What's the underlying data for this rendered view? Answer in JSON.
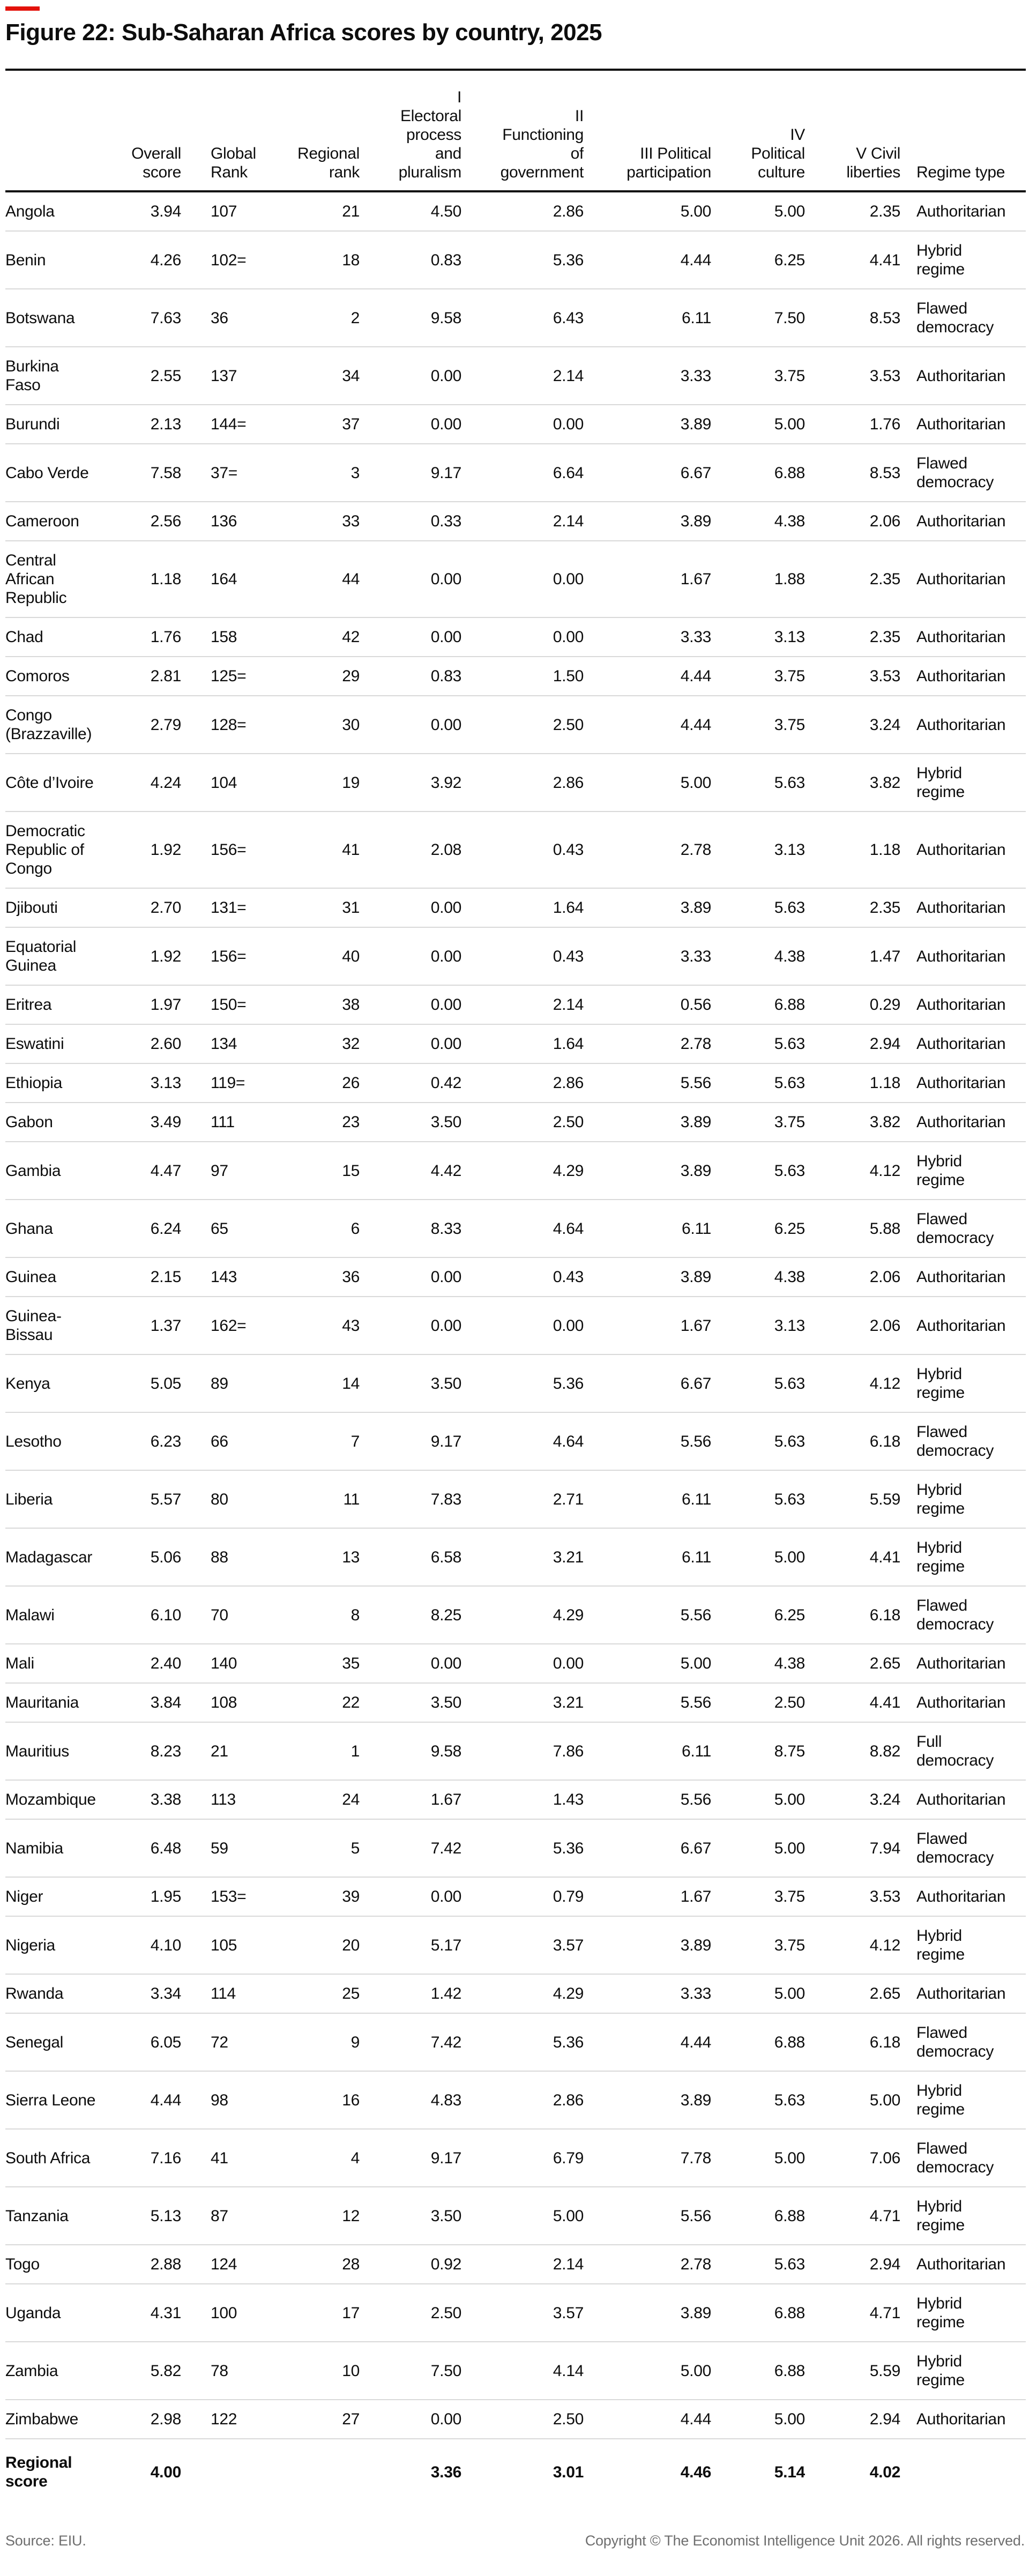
{
  "title": "Figure 22: Sub-Saharan Africa scores by country, 2025",
  "colors": {
    "accent_red": "#e3120b",
    "text": "#0d0d0d",
    "separator": "#d9d9d9",
    "footnote_gray": "#6e6e6e"
  },
  "footer": {
    "source": "Source: EIU.",
    "copyright": "Copyright © The Economist Intelligence Unit 2026. All rights reserved."
  },
  "chart_data": {
    "type": "table",
    "title": "Figure 22: Sub-Saharan Africa scores by country, 2025",
    "headers": [
      "",
      "Overall\nscore",
      "Global\nRank",
      "Regional\nrank",
      "I\nElectoral\nprocess\nand\npluralism",
      "II\nFunctioning\nof\ngovernment",
      "III Political\nparticipation",
      "IV\nPolitical\nculture",
      "V Civil\nliberties",
      "Regime type"
    ],
    "rows": [
      [
        "Angola",
        "3.94",
        "107",
        "21",
        "4.50",
        "2.86",
        "5.00",
        "5.00",
        "2.35",
        "Authoritarian"
      ],
      [
        "Benin",
        "4.26",
        "102=",
        "18",
        "0.83",
        "5.36",
        "4.44",
        "6.25",
        "4.41",
        "Hybrid\nregime"
      ],
      [
        "Botswana",
        "7.63",
        "36",
        "2",
        "9.58",
        "6.43",
        "6.11",
        "7.50",
        "8.53",
        "Flawed\ndemocracy"
      ],
      [
        "Burkina\nFaso",
        "2.55",
        "137",
        "34",
        "0.00",
        "2.14",
        "3.33",
        "3.75",
        "3.53",
        "Authoritarian"
      ],
      [
        "Burundi",
        "2.13",
        "144=",
        "37",
        "0.00",
        "0.00",
        "3.89",
        "5.00",
        "1.76",
        "Authoritarian"
      ],
      [
        "Cabo Verde",
        "7.58",
        "37=",
        "3",
        "9.17",
        "6.64",
        "6.67",
        "6.88",
        "8.53",
        "Flawed\ndemocracy"
      ],
      [
        "Cameroon",
        "2.56",
        "136",
        "33",
        "0.33",
        "2.14",
        "3.89",
        "4.38",
        "2.06",
        "Authoritarian"
      ],
      [
        "Central\nAfrican\nRepublic",
        "1.18",
        "164",
        "44",
        "0.00",
        "0.00",
        "1.67",
        "1.88",
        "2.35",
        "Authoritarian"
      ],
      [
        "Chad",
        "1.76",
        "158",
        "42",
        "0.00",
        "0.00",
        "3.33",
        "3.13",
        "2.35",
        "Authoritarian"
      ],
      [
        "Comoros",
        "2.81",
        "125=",
        "29",
        "0.83",
        "1.50",
        "4.44",
        "3.75",
        "3.53",
        "Authoritarian"
      ],
      [
        "Congo\n(Brazzaville)",
        "2.79",
        "128=",
        "30",
        "0.00",
        "2.50",
        "4.44",
        "3.75",
        "3.24",
        "Authoritarian"
      ],
      [
        "Côte d’Ivoire",
        "4.24",
        "104",
        "19",
        "3.92",
        "2.86",
        "5.00",
        "5.63",
        "3.82",
        "Hybrid\nregime"
      ],
      [
        "Democratic\nRepublic of\nCongo",
        "1.92",
        "156=",
        "41",
        "2.08",
        "0.43",
        "2.78",
        "3.13",
        "1.18",
        "Authoritarian"
      ],
      [
        "Djibouti",
        "2.70",
        "131=",
        "31",
        "0.00",
        "1.64",
        "3.89",
        "5.63",
        "2.35",
        "Authoritarian"
      ],
      [
        "Equatorial\nGuinea",
        "1.92",
        "156=",
        "40",
        "0.00",
        "0.43",
        "3.33",
        "4.38",
        "1.47",
        "Authoritarian"
      ],
      [
        "Eritrea",
        "1.97",
        "150=",
        "38",
        "0.00",
        "2.14",
        "0.56",
        "6.88",
        "0.29",
        "Authoritarian"
      ],
      [
        "Eswatini",
        "2.60",
        "134",
        "32",
        "0.00",
        "1.64",
        "2.78",
        "5.63",
        "2.94",
        "Authoritarian"
      ],
      [
        "Ethiopia",
        "3.13",
        "119=",
        "26",
        "0.42",
        "2.86",
        "5.56",
        "5.63",
        "1.18",
        "Authoritarian"
      ],
      [
        "Gabon",
        "3.49",
        "111",
        "23",
        "3.50",
        "2.50",
        "3.89",
        "3.75",
        "3.82",
        "Authoritarian"
      ],
      [
        "Gambia",
        "4.47",
        "97",
        "15",
        "4.42",
        "4.29",
        "3.89",
        "5.63",
        "4.12",
        "Hybrid\nregime"
      ],
      [
        "Ghana",
        "6.24",
        "65",
        "6",
        "8.33",
        "4.64",
        "6.11",
        "6.25",
        "5.88",
        "Flawed\ndemocracy"
      ],
      [
        "Guinea",
        "2.15",
        "143",
        "36",
        "0.00",
        "0.43",
        "3.89",
        "4.38",
        "2.06",
        "Authoritarian"
      ],
      [
        "Guinea-\nBissau",
        "1.37",
        "162=",
        "43",
        "0.00",
        "0.00",
        "1.67",
        "3.13",
        "2.06",
        "Authoritarian"
      ],
      [
        "Kenya",
        "5.05",
        "89",
        "14",
        "3.50",
        "5.36",
        "6.67",
        "5.63",
        "4.12",
        "Hybrid\nregime"
      ],
      [
        "Lesotho",
        "6.23",
        "66",
        "7",
        "9.17",
        "4.64",
        "5.56",
        "5.63",
        "6.18",
        "Flawed\ndemocracy"
      ],
      [
        "Liberia",
        "5.57",
        "80",
        "11",
        "7.83",
        "2.71",
        "6.11",
        "5.63",
        "5.59",
        "Hybrid\nregime"
      ],
      [
        "Madagascar",
        "5.06",
        "88",
        "13",
        "6.58",
        "3.21",
        "6.11",
        "5.00",
        "4.41",
        "Hybrid\nregime"
      ],
      [
        "Malawi",
        "6.10",
        "70",
        "8",
        "8.25",
        "4.29",
        "5.56",
        "6.25",
        "6.18",
        "Flawed\ndemocracy"
      ],
      [
        "Mali",
        "2.40",
        "140",
        "35",
        "0.00",
        "0.00",
        "5.00",
        "4.38",
        "2.65",
        "Authoritarian"
      ],
      [
        "Mauritania",
        "3.84",
        "108",
        "22",
        "3.50",
        "3.21",
        "5.56",
        "2.50",
        "4.41",
        "Authoritarian"
      ],
      [
        "Mauritius",
        "8.23",
        "21",
        "1",
        "9.58",
        "7.86",
        "6.11",
        "8.75",
        "8.82",
        "Full\ndemocracy"
      ],
      [
        "Mozambique",
        "3.38",
        "113",
        "24",
        "1.67",
        "1.43",
        "5.56",
        "5.00",
        "3.24",
        "Authoritarian"
      ],
      [
        "Namibia",
        "6.48",
        "59",
        "5",
        "7.42",
        "5.36",
        "6.67",
        "5.00",
        "7.94",
        "Flawed\ndemocracy"
      ],
      [
        "Niger",
        "1.95",
        "153=",
        "39",
        "0.00",
        "0.79",
        "1.67",
        "3.75",
        "3.53",
        "Authoritarian"
      ],
      [
        "Nigeria",
        "4.10",
        "105",
        "20",
        "5.17",
        "3.57",
        "3.89",
        "3.75",
        "4.12",
        "Hybrid\nregime"
      ],
      [
        "Rwanda",
        "3.34",
        "114",
        "25",
        "1.42",
        "4.29",
        "3.33",
        "5.00",
        "2.65",
        "Authoritarian"
      ],
      [
        "Senegal",
        "6.05",
        "72",
        "9",
        "7.42",
        "5.36",
        "4.44",
        "6.88",
        "6.18",
        "Flawed\ndemocracy"
      ],
      [
        "Sierra Leone",
        "4.44",
        "98",
        "16",
        "4.83",
        "2.86",
        "3.89",
        "5.63",
        "5.00",
        "Hybrid\nregime"
      ],
      [
        "South Africa",
        "7.16",
        "41",
        "4",
        "9.17",
        "6.79",
        "7.78",
        "5.00",
        "7.06",
        "Flawed\ndemocracy"
      ],
      [
        "Tanzania",
        "5.13",
        "87",
        "12",
        "3.50",
        "5.00",
        "5.56",
        "6.88",
        "4.71",
        "Hybrid\nregime"
      ],
      [
        "Togo",
        "2.88",
        "124",
        "28",
        "0.92",
        "2.14",
        "2.78",
        "5.63",
        "2.94",
        "Authoritarian"
      ],
      [
        "Uganda",
        "4.31",
        "100",
        "17",
        "2.50",
        "3.57",
        "3.89",
        "6.88",
        "4.71",
        "Hybrid\nregime"
      ],
      [
        "Zambia",
        "5.82",
        "78",
        "10",
        "7.50",
        "4.14",
        "5.00",
        "6.88",
        "5.59",
        "Hybrid\nregime"
      ],
      [
        "Zimbabwe",
        "2.98",
        "122",
        "27",
        "0.00",
        "2.50",
        "4.44",
        "5.00",
        "2.94",
        "Authoritarian"
      ]
    ],
    "regional_row": [
      "Regional\nscore",
      "4.00",
      "",
      "",
      "3.36",
      "3.01",
      "4.46",
      "5.14",
      "4.02",
      ""
    ]
  }
}
